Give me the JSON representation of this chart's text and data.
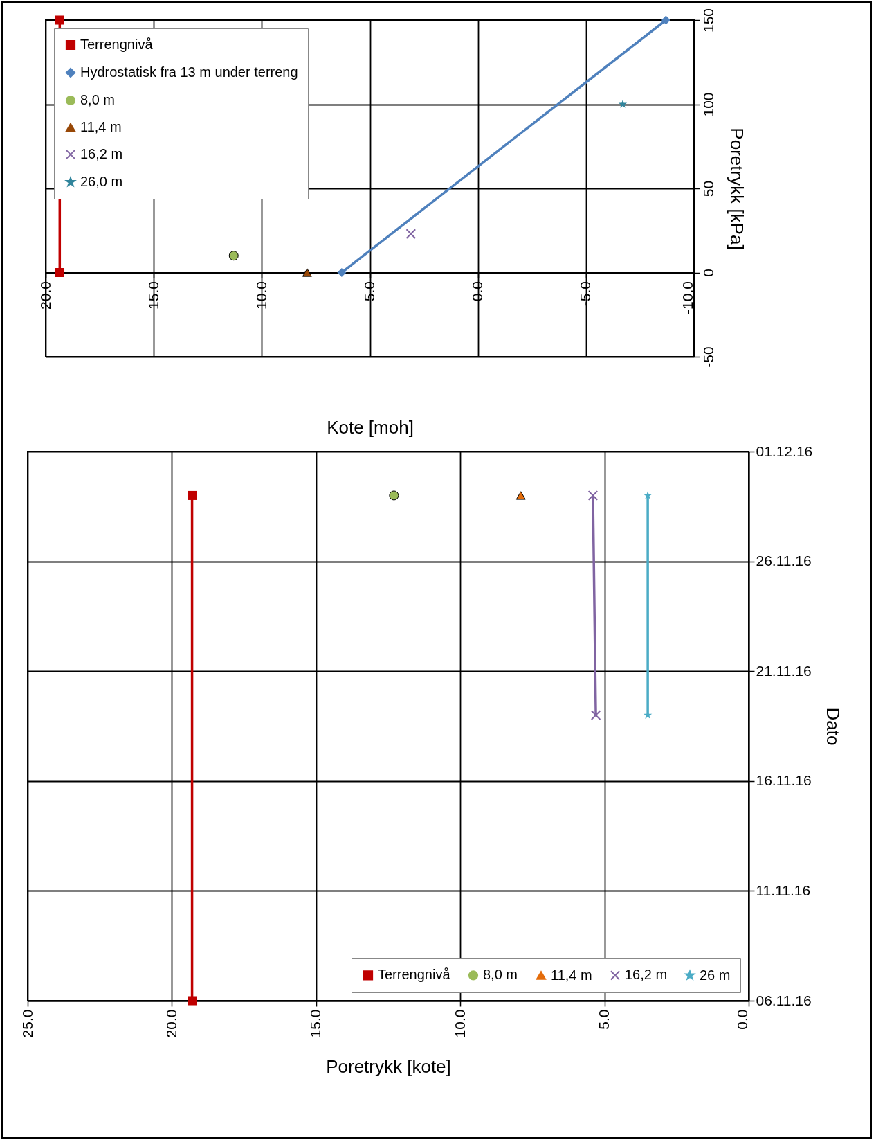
{
  "chart_data": [
    {
      "type": "line",
      "xlabel": "Kote [moh]",
      "ylabel": "Poretrykk [kPa]",
      "xlim": [
        20,
        -10
      ],
      "xticks": [
        {
          "value": 20,
          "label": "20.0"
        },
        {
          "value": 15,
          "label": "15.0"
        },
        {
          "value": 10,
          "label": "10.0"
        },
        {
          "value": 5,
          "label": "5.0"
        },
        {
          "value": 0,
          "label": "0.0"
        },
        {
          "value": -5,
          "label": "-5.0"
        },
        {
          "value": -10,
          "label": "-10.0"
        }
      ],
      "ylim": [
        -50,
        150
      ],
      "yticks": [
        -50,
        0,
        50,
        100,
        150
      ],
      "grid": true,
      "legend": "top left",
      "line_style": "solid",
      "series": [
        {
          "name": "Terrengnivå",
          "type": "line",
          "marker": "square",
          "color": "#c00000",
          "x": [
            19.35,
            19.35
          ],
          "values": [
            0,
            150
          ]
        },
        {
          "name": "Hydrostatisk fra 13 m under terreng",
          "type": "line",
          "marker": "diamond",
          "color": "#4f81bd",
          "x": [
            6.3,
            -8.7
          ],
          "values": [
            0,
            150
          ]
        },
        {
          "name": "8,0 m",
          "type": "scatter",
          "marker": "circle",
          "color": "#9bbb59",
          "x": [
            11.3
          ],
          "values": [
            10
          ]
        },
        {
          "name": "11,4 m",
          "type": "scatter",
          "marker": "triangle",
          "color": "#984807",
          "x": [
            7.9
          ],
          "values": [
            0
          ]
        },
        {
          "name": "16,2 m",
          "type": "scatter",
          "marker": "cross",
          "color": "#8064a2",
          "x": [
            3.1
          ],
          "values": [
            23
          ]
        },
        {
          "name": "26,0 m",
          "type": "scatter",
          "marker": "star",
          "color": "#31859c",
          "x": [
            -6.7
          ],
          "values": [
            100
          ]
        }
      ]
    },
    {
      "type": "line",
      "orientation": "horizontal",
      "xlabel": "Poretrykk [kote]",
      "ylabel": "Dato",
      "xlim": [
        25,
        0
      ],
      "xticks": [
        {
          "value": 25,
          "label": "25.0"
        },
        {
          "value": 20,
          "label": "20.0"
        },
        {
          "value": 15,
          "label": "15.0"
        },
        {
          "value": 10,
          "label": "10.0"
        },
        {
          "value": 5,
          "label": "5.0"
        },
        {
          "value": 0,
          "label": "0.0"
        }
      ],
      "ylim": [
        "--11-06",
        "--12-01"
      ],
      "yticks": [
        {
          "value": "--11-06",
          "label": "06.11.16"
        },
        {
          "value": "--11-11",
          "label": "11.11.16"
        },
        {
          "value": "--11-16",
          "label": "16.11.16"
        },
        {
          "value": "--11-21",
          "label": "21.11.16"
        },
        {
          "value": "--11-26",
          "label": "26.11.16"
        },
        {
          "value": "--12-01",
          "label": "01.12.16"
        }
      ],
      "grid": true,
      "legend": "bottom right",
      "line_style": "solid",
      "series": [
        {
          "name": "Terrengnivå",
          "type": "line",
          "marker": "square",
          "color": "#c00000",
          "x": [
            "--11-29",
            "--11-06"
          ],
          "values": [
            19.3,
            19.3
          ]
        },
        {
          "name": "8,0 m",
          "type": "scatter",
          "marker": "circle",
          "color": "#9bbb59",
          "x": [
            "--11-29"
          ],
          "values": [
            12.3
          ]
        },
        {
          "name": "11,4 m",
          "type": "scatter",
          "marker": "triangle",
          "color": "#e46c0a",
          "x": [
            "--11-29"
          ],
          "values": [
            7.9
          ]
        },
        {
          "name": "16,2 m",
          "type": "line",
          "marker": "cross",
          "color": "#8064a2",
          "x": [
            "--11-29",
            "--11-19"
          ],
          "values": [
            5.4,
            5.3
          ]
        },
        {
          "name": "26 m",
          "type": "line",
          "marker": "star",
          "color": "#4bacc6",
          "x": [
            "--11-29",
            "--11-19"
          ],
          "values": [
            3.5,
            3.5
          ]
        }
      ]
    }
  ]
}
